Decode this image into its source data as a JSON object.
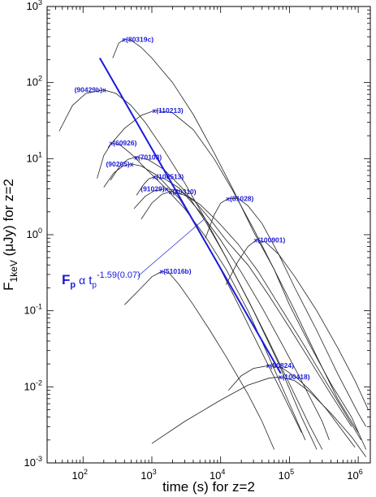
{
  "chart_data": {
    "type": "line",
    "x_scale": "log",
    "y_scale": "log",
    "xlim": [
      30,
      1500000
    ],
    "ylim": [
      0.001,
      1000
    ],
    "xlabel": "time (s) for z=2",
    "ylabel_main": "F",
    "ylabel_sub": "1keV",
    "ylabel_rest": " (μJy)   for z=2",
    "x_ticks": [
      {
        "value": 100,
        "base": "10",
        "exp": "2"
      },
      {
        "value": 1000,
        "base": "10",
        "exp": "3"
      },
      {
        "value": 10000,
        "base": "10",
        "exp": "4"
      },
      {
        "value": 100000,
        "base": "10",
        "exp": "5"
      },
      {
        "value": 1000000,
        "base": "10",
        "exp": "6"
      }
    ],
    "y_ticks": [
      {
        "value": 0.001,
        "base": "10",
        "exp": "-3"
      },
      {
        "value": 0.01,
        "base": "10",
        "exp": "-2"
      },
      {
        "value": 0.1,
        "base": "10",
        "exp": "-1"
      },
      {
        "value": 1,
        "base": "10",
        "exp": "0"
      },
      {
        "value": 10,
        "base": "10",
        "exp": "1"
      },
      {
        "value": 100,
        "base": "10",
        "exp": "2"
      },
      {
        "value": 1000,
        "base": "10",
        "exp": "3"
      }
    ],
    "fit": {
      "F_label": "F",
      "F_sub": "p",
      "alpha": "α",
      "t_label": "t",
      "t_sub": "p",
      "exponent": "-1.59(0.07)",
      "line_points": [
        [
          175,
          210
        ],
        [
          75000,
          0.015
        ]
      ],
      "label_anchor": [
        6000,
        1.65
      ]
    },
    "series": [
      {
        "name": "80319c",
        "peak": [
          400,
          370
        ],
        "points": [
          [
            270,
            210
          ],
          [
            330,
            330
          ],
          [
            400,
            370
          ],
          [
            500,
            360
          ],
          [
            700,
            290
          ],
          [
            1000,
            210
          ],
          [
            2000,
            100
          ],
          [
            4000,
            38
          ],
          [
            8000,
            12
          ],
          [
            15000,
            4
          ],
          [
            30000,
            1.1
          ],
          [
            60000,
            0.35
          ],
          [
            100000,
            0.12
          ],
          [
            200000,
            0.035
          ],
          [
            400000,
            0.011
          ],
          [
            800000,
            0.004
          ],
          [
            1300000,
            0.0015
          ]
        ]
      },
      {
        "name": "90429b",
        "peak": [
          200,
          80
        ],
        "points": [
          [
            45,
            23
          ],
          [
            70,
            50
          ],
          [
            110,
            72
          ],
          [
            200,
            80
          ],
          [
            300,
            72
          ],
          [
            500,
            50
          ],
          [
            800,
            30
          ],
          [
            1500,
            13
          ],
          [
            3000,
            4.8
          ],
          [
            6000,
            1.6
          ],
          [
            12000,
            0.5
          ],
          [
            30000,
            0.1
          ],
          [
            70000,
            0.02
          ],
          [
            150000,
            0.004
          ],
          [
            250000,
            0.0015
          ]
        ]
      },
      {
        "name": "110213",
        "peak": [
          1100,
          43
        ],
        "points": [
          [
            230,
            14
          ],
          [
            400,
            25
          ],
          [
            700,
            37
          ],
          [
            1100,
            43
          ],
          [
            2000,
            40
          ],
          [
            4000,
            24
          ],
          [
            8000,
            10
          ],
          [
            15000,
            3.8
          ],
          [
            30000,
            1.2
          ],
          [
            60000,
            0.35
          ],
          [
            120000,
            0.1
          ],
          [
            250000,
            0.025
          ],
          [
            500000,
            0.007
          ],
          [
            1000000,
            0.0025
          ]
        ]
      },
      {
        "name": "60926",
        "peak": [
          260,
          16
        ],
        "points": [
          [
            160,
            5.5
          ],
          [
            200,
            11
          ],
          [
            260,
            16
          ],
          [
            350,
            15
          ],
          [
            500,
            11.5
          ],
          [
            800,
            7.5
          ],
          [
            1500,
            4.3
          ],
          [
            3000,
            2.2
          ],
          [
            6000,
            0.95
          ],
          [
            12000,
            0.35
          ],
          [
            25000,
            0.1
          ],
          [
            50000,
            0.025
          ],
          [
            100000,
            0.006
          ],
          [
            170000,
            0.002
          ]
        ]
      },
      {
        "name": "70103",
        "peak": [
          600,
          10.5
        ],
        "points": [
          [
            250,
            5.2
          ],
          [
            350,
            8.2
          ],
          [
            450,
            9.8
          ],
          [
            600,
            10.5
          ],
          [
            900,
            9.6
          ],
          [
            1500,
            7.2
          ],
          [
            3000,
            3.8
          ],
          [
            6000,
            1.5
          ],
          [
            12000,
            0.5
          ],
          [
            25000,
            0.14
          ],
          [
            50000,
            0.04
          ],
          [
            100000,
            0.011
          ],
          [
            200000,
            0.003
          ],
          [
            300000,
            0.0015
          ]
        ]
      },
      {
        "name": "90205",
        "peak": [
          500,
          8.5
        ],
        "points": [
          [
            200,
            4.2
          ],
          [
            280,
            6.5
          ],
          [
            380,
            8
          ],
          [
            500,
            8.5
          ],
          [
            700,
            8
          ],
          [
            1200,
            6
          ],
          [
            2500,
            3
          ],
          [
            5000,
            1.1
          ],
          [
            10000,
            0.35
          ],
          [
            20000,
            0.1
          ],
          [
            40000,
            0.028
          ],
          [
            80000,
            0.008
          ],
          [
            150000,
            0.0025
          ]
        ]
      },
      {
        "name": "100513",
        "peak": [
          1100,
          5.8
        ],
        "points": [
          [
            600,
            3.3
          ],
          [
            750,
            4.5
          ],
          [
            900,
            5.4
          ],
          [
            1100,
            5.8
          ],
          [
            1500,
            5.5
          ],
          [
            2500,
            4.1
          ],
          [
            5000,
            2
          ],
          [
            10000,
            0.85
          ],
          [
            20000,
            0.32
          ],
          [
            40000,
            0.11
          ],
          [
            80000,
            0.035
          ],
          [
            150000,
            0.012
          ],
          [
            300000,
            0.0035
          ],
          [
            380000,
            0.002
          ]
        ]
      },
      {
        "name": "91029",
        "peak": [
          1600,
          4.0
        ],
        "points": [
          [
            550,
            2.2
          ],
          [
            800,
            3.2
          ],
          [
            1100,
            3.8
          ],
          [
            1600,
            4
          ],
          [
            2500,
            3.8
          ],
          [
            4000,
            2.9
          ],
          [
            7000,
            1.6
          ],
          [
            12000,
            0.85
          ],
          [
            25000,
            0.4
          ],
          [
            50000,
            0.16
          ],
          [
            100000,
            0.06
          ],
          [
            200000,
            0.022
          ],
          [
            400000,
            0.008
          ],
          [
            800000,
            0.003
          ]
        ]
      },
      {
        "name": "80310",
        "peak": [
          1900,
          3.7
        ],
        "points": [
          [
            700,
            1.6
          ],
          [
            1000,
            2.6
          ],
          [
            1400,
            3.4
          ],
          [
            1900,
            3.7
          ],
          [
            3000,
            3.3
          ],
          [
            5000,
            2.5
          ],
          [
            9000,
            1.5
          ],
          [
            18000,
            0.75
          ],
          [
            35000,
            0.33
          ],
          [
            70000,
            0.12
          ],
          [
            150000,
            0.04
          ],
          [
            300000,
            0.014
          ],
          [
            600000,
            0.005
          ],
          [
            1100000,
            0.002
          ]
        ]
      },
      {
        "name": "81028",
        "peak": [
          13000,
          3.0
        ],
        "points": [
          [
            6000,
            0.9
          ],
          [
            8000,
            1.8
          ],
          [
            10000,
            2.6
          ],
          [
            13000,
            3
          ],
          [
            18000,
            3
          ],
          [
            25000,
            2.4
          ],
          [
            40000,
            1.4
          ],
          [
            70000,
            0.55
          ],
          [
            120000,
            0.2
          ],
          [
            250000,
            0.055
          ],
          [
            500000,
            0.015
          ],
          [
            1000000,
            0.0045
          ],
          [
            1300000,
            0.003
          ]
        ]
      },
      {
        "name": "100901",
        "peak": [
          33000,
          0.85
        ],
        "points": [
          [
            12000,
            0.22
          ],
          [
            18000,
            0.45
          ],
          [
            25000,
            0.7
          ],
          [
            33000,
            0.85
          ],
          [
            45000,
            0.8
          ],
          [
            70000,
            0.55
          ],
          [
            120000,
            0.28
          ],
          [
            250000,
            0.1
          ],
          [
            500000,
            0.033
          ],
          [
            900000,
            0.012
          ],
          [
            1400000,
            0.005
          ]
        ]
      },
      {
        "name": "51016b",
        "peak": [
          1400,
          0.33
        ],
        "points": [
          [
            400,
            0.12
          ],
          [
            700,
            0.2
          ],
          [
            1000,
            0.28
          ],
          [
            1400,
            0.33
          ],
          [
            1800,
            0.31
          ],
          [
            2500,
            0.22
          ],
          [
            4000,
            0.12
          ],
          [
            7000,
            0.055
          ],
          [
            12000,
            0.025
          ],
          [
            25000,
            0.008
          ],
          [
            40000,
            0.0035
          ],
          [
            60000,
            0.0015
          ]
        ]
      },
      {
        "name": "50824",
        "peak": [
          50000,
          0.019
        ],
        "points": [
          [
            13000,
            0.009
          ],
          [
            20000,
            0.014
          ],
          [
            30000,
            0.0175
          ],
          [
            50000,
            0.019
          ],
          [
            80000,
            0.0175
          ],
          [
            130000,
            0.013
          ],
          [
            200000,
            0.009
          ],
          [
            350000,
            0.005
          ],
          [
            600000,
            0.0026
          ],
          [
            900000,
            0.0016
          ]
        ]
      },
      {
        "name": "100418",
        "peak": [
          75000,
          0.0135
        ],
        "points": [
          [
            1000,
            0.0018
          ],
          [
            3000,
            0.0035
          ],
          [
            10000,
            0.0067
          ],
          [
            25000,
            0.0105
          ],
          [
            50000,
            0.013
          ],
          [
            75000,
            0.0135
          ],
          [
            120000,
            0.012
          ],
          [
            200000,
            0.0085
          ],
          [
            400000,
            0.0045
          ],
          [
            800000,
            0.0022
          ],
          [
            1300000,
            0.0012
          ]
        ]
      }
    ]
  }
}
